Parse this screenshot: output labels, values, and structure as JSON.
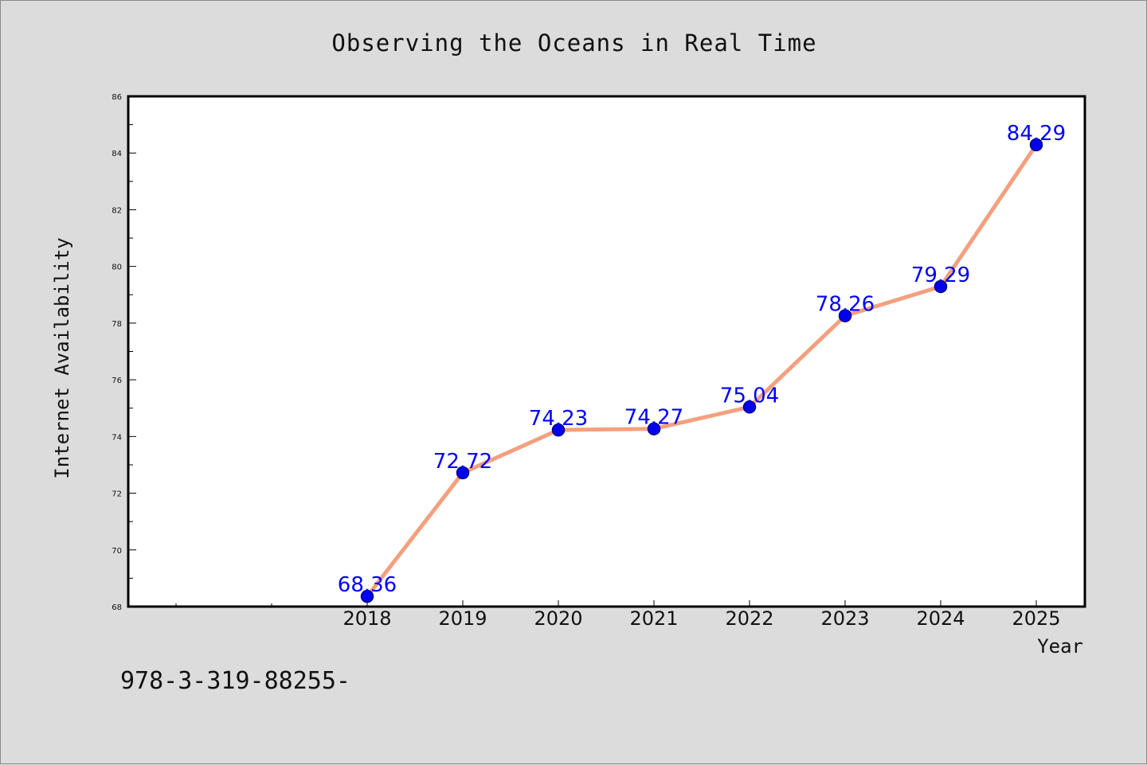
{
  "chart_data": {
    "type": "line",
    "title": "Observing the Oceans in Real Time",
    "xlabel": "Year",
    "ylabel": "Internet Availability",
    "x": [
      "2018",
      "2019",
      "2020",
      "2021",
      "2022",
      "2023",
      "2024",
      "2025"
    ],
    "series": [
      {
        "values": [
          68.36,
          72.72,
          74.23,
          74.27,
          75.04,
          78.26,
          79.29,
          84.29
        ],
        "labels": [
          "68.36",
          "72.72",
          "74.23",
          "74.27",
          "75.04",
          "78.26",
          "79.29",
          "84.29"
        ]
      }
    ],
    "ylim": [
      68,
      86
    ],
    "yticks": [
      "68",
      "70",
      "72",
      "74",
      "76",
      "78",
      "80",
      "82",
      "84",
      "86"
    ],
    "grid": false,
    "legend": "none",
    "colors": {
      "line": "#f4a07e",
      "marker": "#0000ee",
      "marker_edge": "#00008b",
      "data_label": "#0000ff",
      "plot_background": "#ffffff",
      "figure_background": "#dcdcdc"
    }
  },
  "footer": {
    "text": "978-3-319-88255-"
  }
}
